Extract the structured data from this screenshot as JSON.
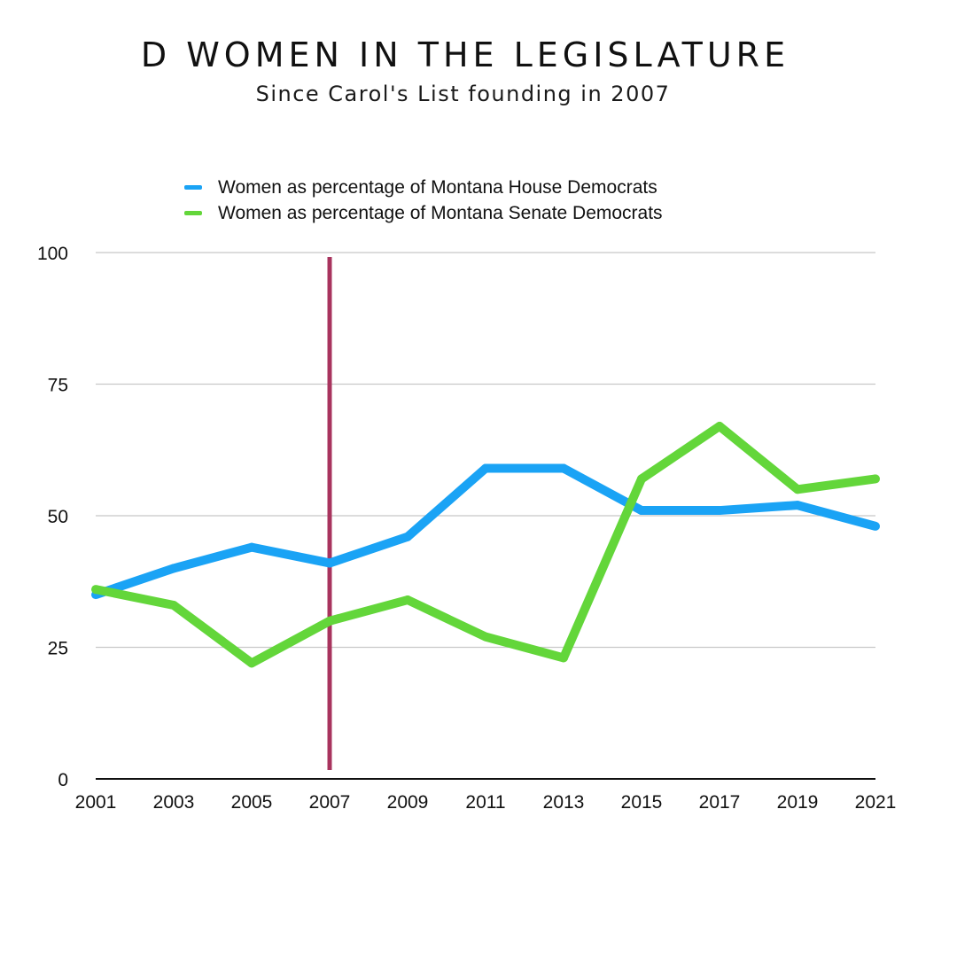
{
  "chart_data": {
    "type": "line",
    "title": "D WOMEN IN THE LEGISLATURE",
    "subtitle": "Since Carol's List founding in 2007",
    "categories": [
      "2001",
      "2003",
      "2005",
      "2007",
      "2009",
      "2011",
      "2013",
      "2015",
      "2017",
      "2019",
      "2021"
    ],
    "series": [
      {
        "name": "Women as percentage of Montana House Democrats",
        "color": "#1aa3f5",
        "values": [
          35,
          40,
          44,
          41,
          46,
          59,
          59,
          51,
          51,
          52,
          48
        ]
      },
      {
        "name": "Women as percentage of Montana Senate Democrats",
        "color": "#63d63a",
        "values": [
          36,
          33,
          22,
          30,
          34,
          27,
          23,
          57,
          67,
          55,
          57
        ]
      }
    ],
    "yticks": [
      0,
      25,
      50,
      75,
      100
    ],
    "ylim": [
      0,
      100
    ],
    "grid": true,
    "legend_position": "top",
    "reference_line": {
      "x": "2007",
      "color": "#a8345e"
    }
  }
}
